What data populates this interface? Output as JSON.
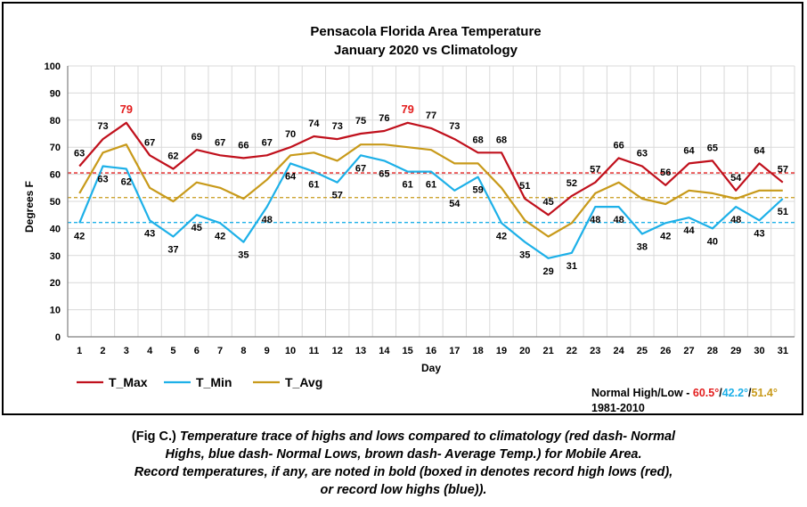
{
  "chart_data": {
    "type": "line",
    "title_line1": "Pensacola Florida Area Temperature",
    "title_line2": "January 2020 vs Climatology",
    "xlabel": "Day",
    "ylabel": "Degrees F",
    "ylim": [
      0,
      100
    ],
    "ytick_step": 10,
    "grid": true,
    "x": [
      1,
      2,
      3,
      4,
      5,
      6,
      7,
      8,
      9,
      10,
      11,
      12,
      13,
      14,
      15,
      16,
      17,
      18,
      19,
      20,
      21,
      22,
      23,
      24,
      25,
      26,
      27,
      28,
      29,
      30,
      31
    ],
    "series": [
      {
        "name": "T_Max",
        "color": "#c0101c",
        "values": [
          63,
          73,
          79,
          67,
          62,
          69,
          67,
          66,
          67,
          70,
          74,
          73,
          75,
          76,
          79,
          77,
          73,
          68,
          68,
          51,
          45,
          52,
          57,
          66,
          63,
          56,
          64,
          65,
          54,
          64,
          57
        ]
      },
      {
        "name": "T_Min",
        "color": "#1db0e8",
        "values": [
          42,
          63,
          62,
          43,
          37,
          45,
          42,
          35,
          48,
          64,
          61,
          57,
          67,
          65,
          61,
          61,
          54,
          59,
          42,
          35,
          29,
          31,
          48,
          48,
          38,
          42,
          44,
          40,
          48,
          43,
          51
        ]
      },
      {
        "name": "T_Avg",
        "color": "#c89a1a",
        "values": [
          53,
          68,
          71,
          55,
          50,
          57,
          55,
          51,
          58,
          67,
          68,
          65,
          71,
          71,
          70,
          69,
          64,
          64,
          55,
          43,
          37,
          42,
          53,
          57,
          51,
          49,
          54,
          53,
          51,
          54,
          54
        ]
      }
    ],
    "record_days_max": [
      3,
      15
    ],
    "record_color": "#e31e1e",
    "normals": [
      {
        "name": "Normal High",
        "value": 60.5,
        "color": "#e31e1e"
      },
      {
        "name": "Normal Low",
        "value": 42.2,
        "color": "#1db0e8"
      },
      {
        "name": "Average",
        "value": 51.4,
        "color": "#c89a1a"
      }
    ],
    "legend_position": "bottom-left"
  },
  "normals_text": {
    "prefix": "Normal High/Low - ",
    "high": "60.5°",
    "sep1": "/",
    "low": "42.2°",
    "sep2": "/",
    "avg": "51.4°",
    "period": "1981-2010"
  },
  "caption": {
    "lead": "(Fig C.) ",
    "line1": "Temperature trace of highs and lows compared to climatology (red dash- Normal",
    "line2": "Highs, blue dash- Normal Lows, brown dash- Average Temp.) for Mobile Area.",
    "line3": "Record temperatures, if any, are noted in bold (boxed in denotes record high lows (red),",
    "line4": "or record low highs (blue))."
  }
}
